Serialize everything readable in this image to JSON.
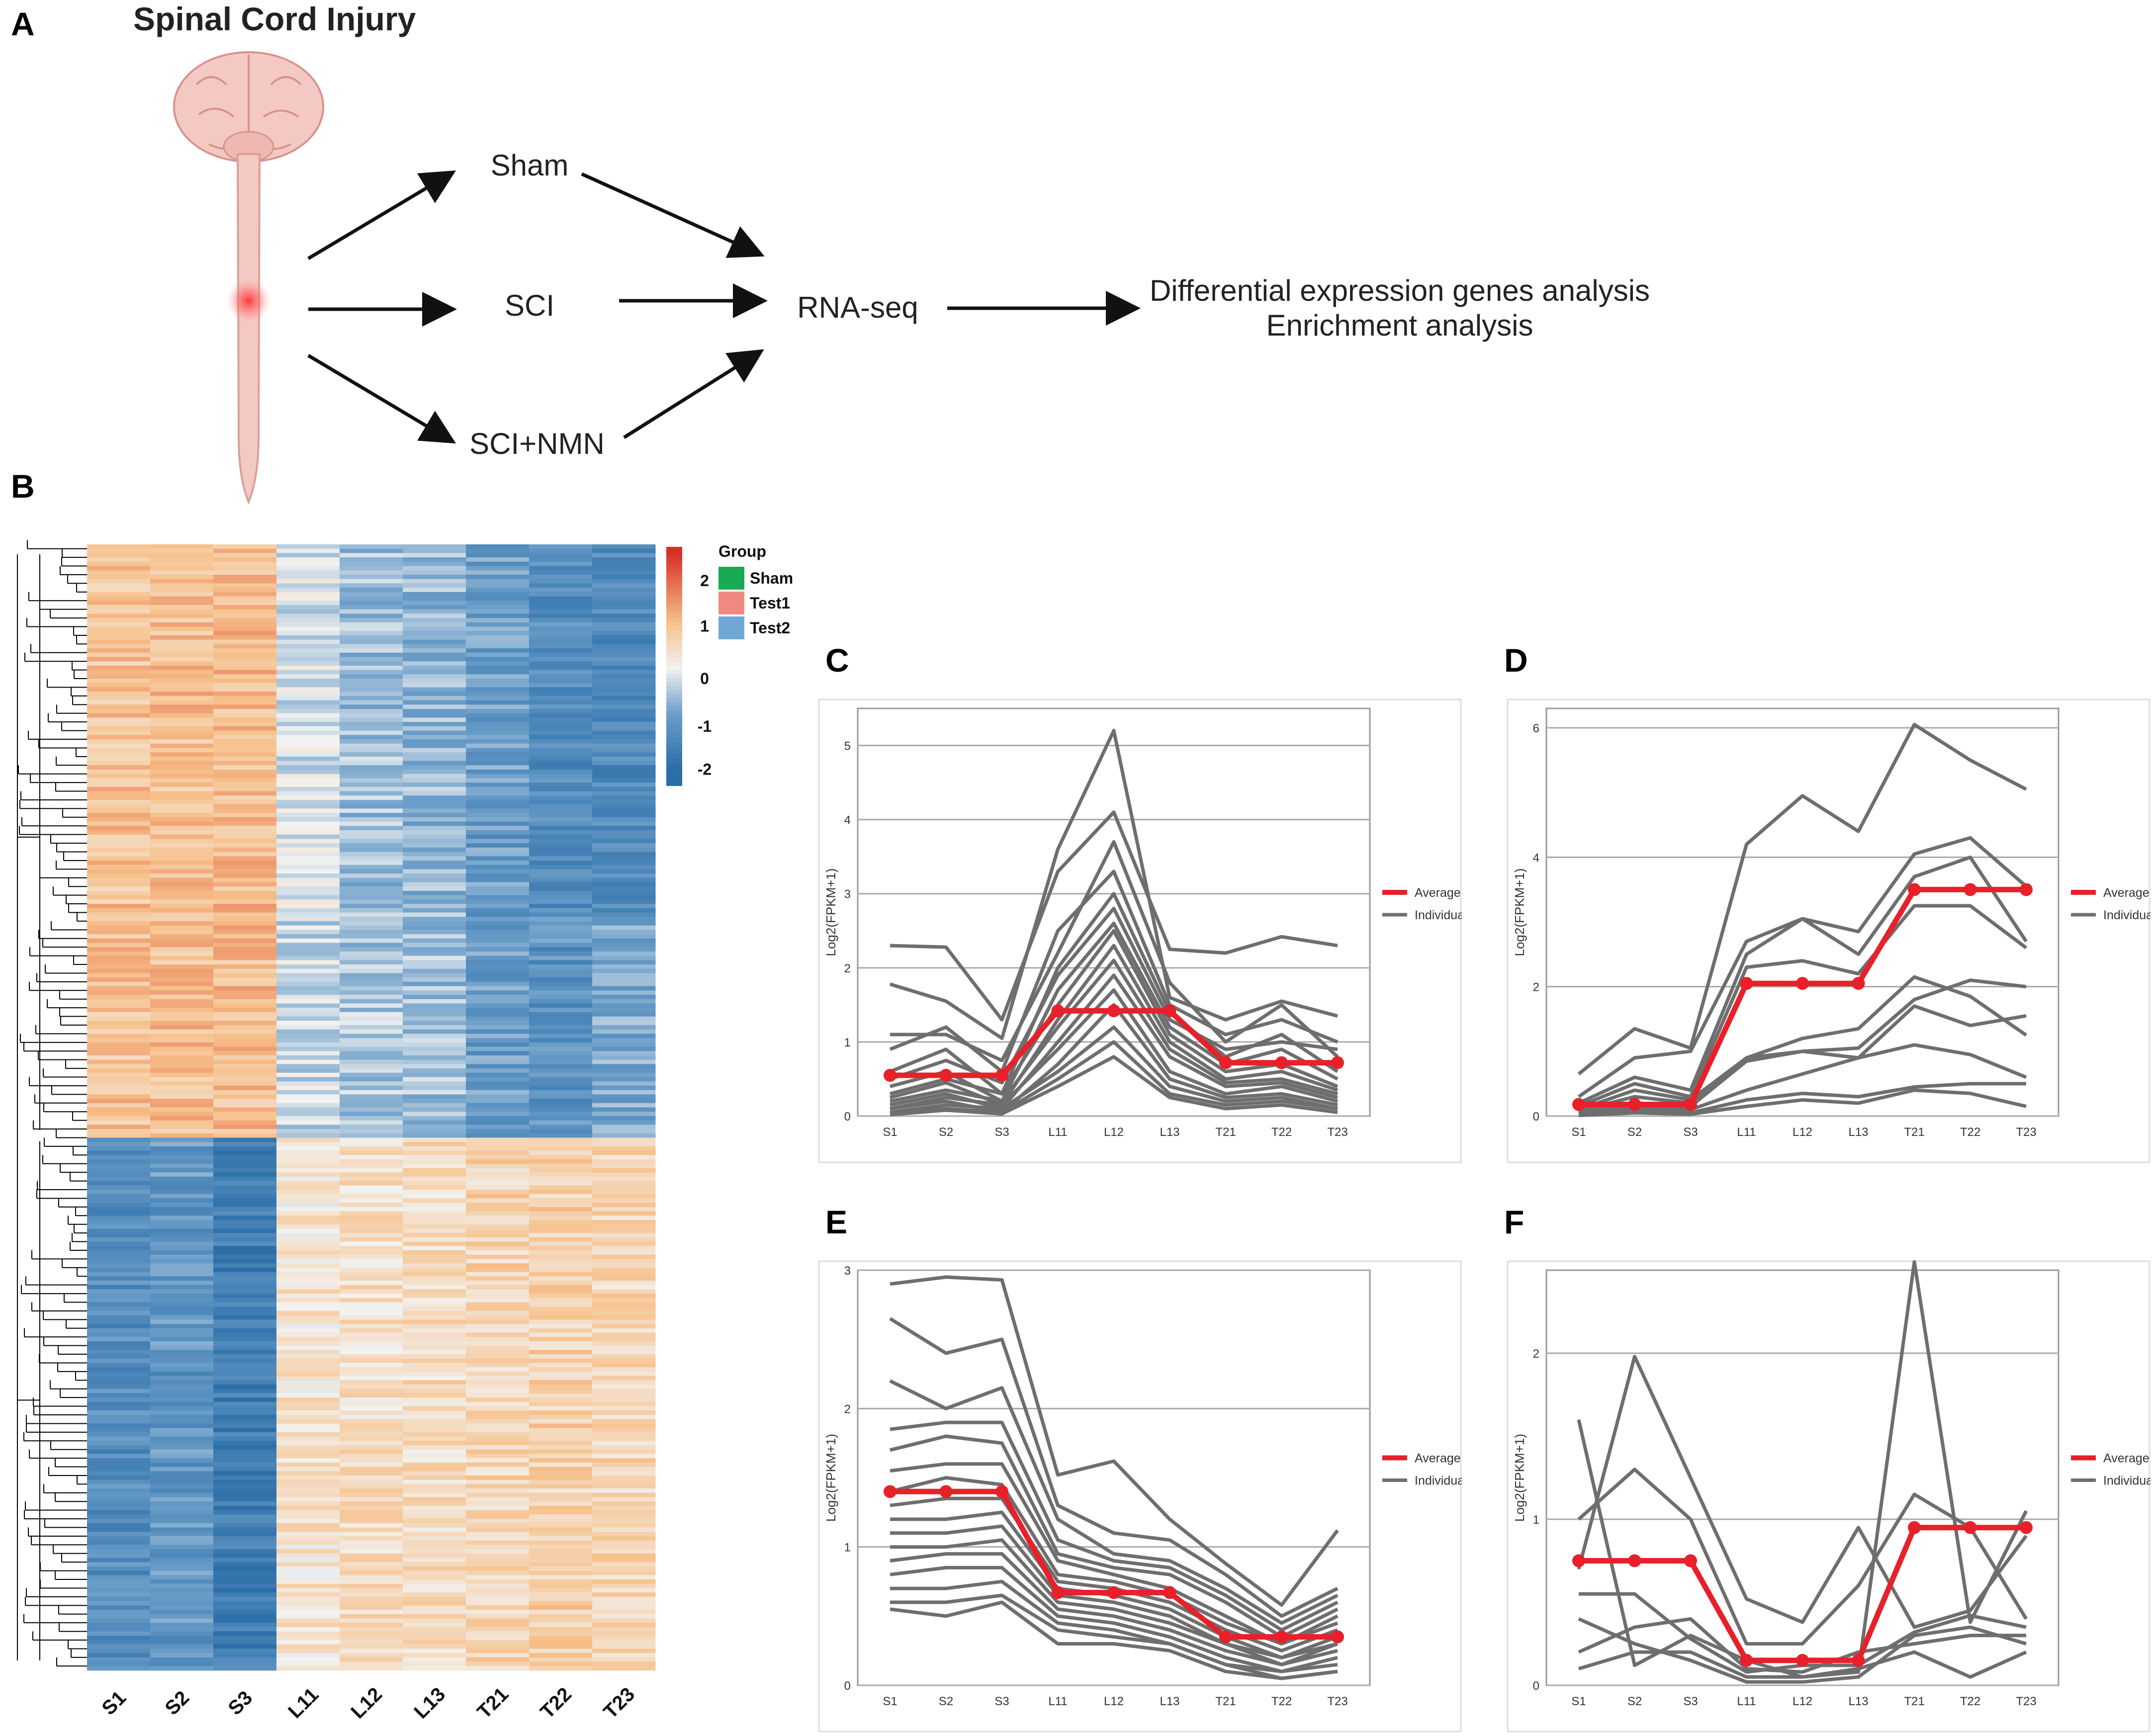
{
  "panels": {
    "a": "A",
    "b": "B",
    "c": "C",
    "d": "D",
    "e": "E",
    "f": "F"
  },
  "flow": {
    "title": "Spinal Cord Injury",
    "sham": "Sham",
    "sci": "SCI",
    "sci_nmn": "SCI+NMN",
    "rnaseq": "RNA-seq",
    "out1": "Differential expression genes analysis",
    "out2": "Enrichment analysis"
  },
  "heatmap": {
    "samples": [
      "S1",
      "S2",
      "S3",
      "L11",
      "L12",
      "L13",
      "T21",
      "T22",
      "T23"
    ],
    "legend_title": "Group",
    "groups": [
      "Sham",
      "Test1",
      "Test2"
    ],
    "group_colors": [
      "#1aaa55",
      "#f08a80",
      "#6fa8d6"
    ],
    "scale_ticks": [
      "2",
      "1",
      "0",
      "-1",
      "-2"
    ],
    "colors": {
      "high": "#d73027",
      "mid_high": "#f7c08a",
      "mid": "#f2f2f0",
      "mid_low": "#6c9ec9",
      "low": "#2b6ea8"
    }
  },
  "chart_data": [
    {
      "id": "C",
      "type": "line",
      "categories": [
        "S1",
        "S2",
        "S3",
        "L11",
        "L12",
        "L13",
        "T21",
        "T22",
        "T23"
      ],
      "ylabel": "Log2(FPKM+1)",
      "ylim": [
        0,
        5.5
      ],
      "yticks": [
        "0",
        "1",
        "2",
        "3",
        "4",
        "5"
      ],
      "legend": [
        "Average",
        "Individual"
      ],
      "average": [
        0.55,
        0.55,
        0.55,
        1.42,
        1.42,
        1.42,
        0.72,
        0.72,
        0.72
      ],
      "individuals": [
        [
          2.3,
          2.28,
          1.3,
          3.3,
          4.1,
          2.25,
          2.2,
          2.42,
          2.3
        ],
        [
          1.78,
          1.55,
          1.05,
          3.6,
          5.2,
          1.6,
          1.3,
          1.55,
          1.35
        ],
        [
          1.1,
          1.1,
          0.75,
          2.2,
          3.7,
          1.8,
          1.0,
          1.5,
          0.8
        ],
        [
          0.9,
          1.2,
          0.6,
          2.5,
          3.3,
          1.5,
          1.1,
          1.3,
          1.0
        ],
        [
          0.6,
          0.9,
          0.3,
          2.0,
          3.0,
          1.4,
          0.8,
          1.1,
          0.6
        ],
        [
          0.5,
          0.75,
          0.45,
          1.9,
          2.8,
          1.3,
          0.9,
          1.0,
          0.9
        ],
        [
          0.4,
          0.6,
          0.2,
          1.7,
          2.6,
          1.2,
          0.7,
          0.9,
          0.5
        ],
        [
          0.3,
          0.5,
          0.3,
          1.5,
          2.5,
          1.1,
          0.6,
          0.7,
          0.4
        ],
        [
          0.25,
          0.45,
          0.15,
          1.3,
          2.3,
          1.0,
          0.5,
          0.6,
          0.35
        ],
        [
          0.2,
          0.35,
          0.2,
          1.2,
          2.1,
          0.9,
          0.45,
          0.5,
          0.3
        ],
        [
          0.15,
          0.3,
          0.1,
          1.0,
          1.9,
          0.8,
          0.4,
          0.45,
          0.25
        ],
        [
          0.1,
          0.25,
          0.15,
          0.9,
          1.7,
          0.6,
          0.3,
          0.4,
          0.2
        ],
        [
          0.1,
          0.2,
          0.05,
          0.7,
          1.5,
          0.5,
          0.25,
          0.3,
          0.15
        ],
        [
          0.05,
          0.15,
          0.1,
          0.6,
          1.2,
          0.4,
          0.2,
          0.25,
          0.1
        ],
        [
          0.05,
          0.1,
          0.05,
          0.5,
          1.0,
          0.3,
          0.15,
          0.2,
          0.1
        ],
        [
          0.02,
          0.08,
          0.03,
          0.4,
          0.8,
          0.25,
          0.1,
          0.15,
          0.05
        ]
      ]
    },
    {
      "id": "D",
      "type": "line",
      "categories": [
        "S1",
        "S2",
        "S3",
        "L11",
        "L12",
        "L13",
        "T21",
        "T22",
        "T23"
      ],
      "ylabel": "Log2(FPKM+1)",
      "ylim": [
        0,
        6.3
      ],
      "yticks": [
        "0",
        "2",
        "4",
        "6"
      ],
      "legend": [
        "Average",
        "Individual"
      ],
      "average": [
        0.18,
        0.18,
        0.18,
        2.05,
        2.05,
        2.05,
        3.5,
        3.5,
        3.5
      ],
      "individuals": [
        [
          0.65,
          1.35,
          1.05,
          4.2,
          4.95,
          4.4,
          6.05,
          5.5,
          5.05
        ],
        [
          0.3,
          0.9,
          1.0,
          2.7,
          3.05,
          2.85,
          4.05,
          4.3,
          3.55
        ],
        [
          0.2,
          0.6,
          0.4,
          2.5,
          3.05,
          2.5,
          3.7,
          4.0,
          2.7
        ],
        [
          0.15,
          0.5,
          0.3,
          2.3,
          2.4,
          2.2,
          3.25,
          3.25,
          2.6
        ],
        [
          0.1,
          0.4,
          0.25,
          0.9,
          1.2,
          1.35,
          2.15,
          1.85,
          1.25
        ],
        [
          0.08,
          0.3,
          0.2,
          0.9,
          1.0,
          1.05,
          1.8,
          2.1,
          2.0
        ],
        [
          0.05,
          0.2,
          0.15,
          0.85,
          1.0,
          0.9,
          1.7,
          1.4,
          1.55
        ],
        [
          0.03,
          0.15,
          0.1,
          0.4,
          0.65,
          0.9,
          1.1,
          0.95,
          0.6
        ],
        [
          0.02,
          0.1,
          0.05,
          0.25,
          0.35,
          0.3,
          0.45,
          0.5,
          0.5
        ],
        [
          0.01,
          0.05,
          0.03,
          0.15,
          0.25,
          0.2,
          0.4,
          0.35,
          0.15
        ]
      ]
    },
    {
      "id": "E",
      "type": "line",
      "categories": [
        "S1",
        "S2",
        "S3",
        "L11",
        "L12",
        "L13",
        "T21",
        "T22",
        "T23"
      ],
      "ylabel": "Log2(FPKM+1)",
      "ylim": [
        0,
        3.0
      ],
      "yticks": [
        "0",
        "1",
        "2",
        "3"
      ],
      "legend": [
        "Average",
        "Individual"
      ],
      "average": [
        1.4,
        1.4,
        1.4,
        0.67,
        0.67,
        0.67,
        0.35,
        0.35,
        0.35
      ],
      "individuals": [
        [
          2.9,
          2.95,
          2.93,
          1.52,
          1.62,
          1.2,
          0.88,
          0.58,
          1.12
        ],
        [
          2.65,
          2.4,
          2.5,
          1.3,
          1.1,
          1.05,
          0.8,
          0.5,
          0.7
        ],
        [
          2.2,
          2.0,
          2.15,
          1.2,
          0.95,
          0.9,
          0.7,
          0.45,
          0.65
        ],
        [
          1.85,
          1.9,
          1.9,
          1.05,
          0.9,
          0.85,
          0.65,
          0.4,
          0.6
        ],
        [
          1.7,
          1.8,
          1.75,
          0.95,
          0.85,
          0.8,
          0.6,
          0.35,
          0.55
        ],
        [
          1.55,
          1.6,
          1.6,
          0.9,
          0.8,
          0.7,
          0.5,
          0.3,
          0.5
        ],
        [
          1.4,
          1.5,
          1.45,
          0.8,
          0.75,
          0.65,
          0.45,
          0.3,
          0.45
        ],
        [
          1.3,
          1.35,
          1.35,
          0.75,
          0.7,
          0.6,
          0.4,
          0.25,
          0.4
        ],
        [
          1.2,
          1.2,
          1.25,
          0.7,
          0.65,
          0.55,
          0.35,
          0.2,
          0.35
        ],
        [
          1.1,
          1.1,
          1.15,
          0.65,
          0.6,
          0.5,
          0.3,
          0.2,
          0.3
        ],
        [
          1.0,
          1.0,
          1.05,
          0.6,
          0.55,
          0.45,
          0.3,
          0.15,
          0.3
        ],
        [
          0.9,
          0.95,
          0.95,
          0.55,
          0.5,
          0.4,
          0.25,
          0.15,
          0.25
        ],
        [
          0.8,
          0.85,
          0.85,
          0.5,
          0.45,
          0.35,
          0.2,
          0.1,
          0.2
        ],
        [
          0.7,
          0.7,
          0.75,
          0.45,
          0.4,
          0.3,
          0.15,
          0.1,
          0.15
        ],
        [
          0.6,
          0.6,
          0.65,
          0.4,
          0.35,
          0.3,
          0.15,
          0.05,
          0.1
        ],
        [
          0.55,
          0.5,
          0.6,
          0.3,
          0.3,
          0.25,
          0.1,
          0.05,
          0.1
        ]
      ]
    },
    {
      "id": "F",
      "type": "line",
      "categories": [
        "S1",
        "S2",
        "S3",
        "L11",
        "L12",
        "L13",
        "T21",
        "T22",
        "T23"
      ],
      "ylabel": "Log2(FPKM+1)",
      "ylim": [
        0,
        2.5
      ],
      "yticks": [
        "0",
        "1",
        "2"
      ],
      "legend": [
        "Average",
        "Individual"
      ],
      "average": [
        0.75,
        0.75,
        0.75,
        0.15,
        0.15,
        0.15,
        0.95,
        0.95,
        0.95
      ],
      "individuals": [
        [
          1.6,
          0.12,
          0.3,
          0.15,
          0.05,
          0.08,
          2.55,
          0.38,
          1.05
        ],
        [
          0.7,
          1.98,
          1.25,
          0.52,
          0.38,
          0.95,
          0.35,
          0.45,
          0.9
        ],
        [
          1.0,
          1.3,
          1.0,
          0.25,
          0.25,
          0.6,
          1.15,
          0.95,
          0.4
        ],
        [
          0.55,
          0.55,
          0.28,
          0.08,
          0.12,
          0.12,
          0.32,
          0.42,
          0.35
        ],
        [
          0.2,
          0.35,
          0.4,
          0.1,
          0.08,
          0.2,
          0.25,
          0.3,
          0.3
        ],
        [
          0.1,
          0.2,
          0.2,
          0.05,
          0.05,
          0.1,
          0.2,
          0.05,
          0.2
        ],
        [
          0.4,
          0.25,
          0.15,
          0.02,
          0.02,
          0.05,
          0.3,
          0.35,
          0.25
        ]
      ]
    }
  ]
}
